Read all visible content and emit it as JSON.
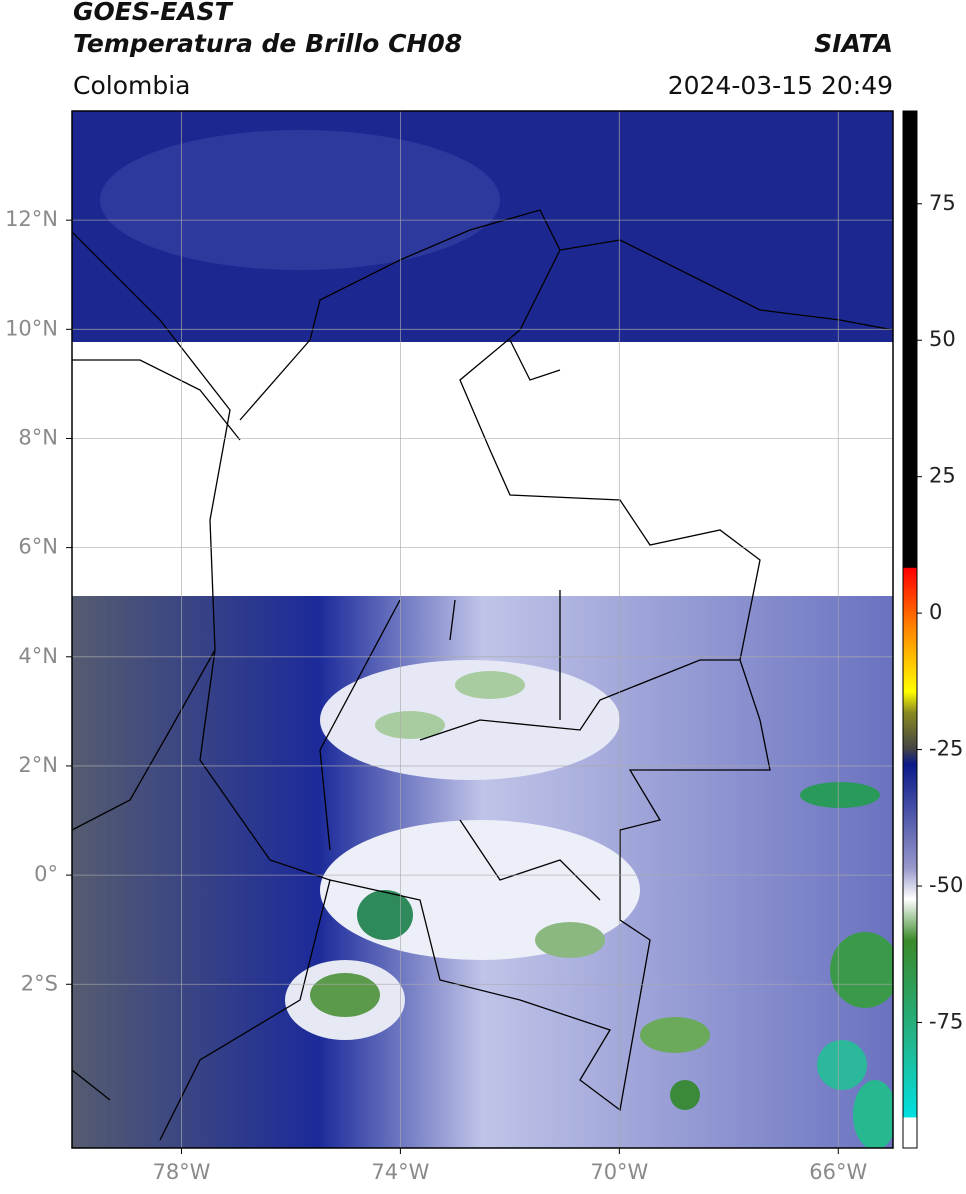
{
  "header": {
    "title": "GOES-EAST",
    "subtitle": "Temperatura de Brillo CH08",
    "region": "Colombia",
    "agency": "SIATA",
    "datetime": "2024-03-15 20:49"
  },
  "map": {
    "lon_range": [
      -80,
      -65
    ],
    "lat_range": [
      -5,
      14
    ],
    "lon_ticks": [
      {
        "value": -78,
        "label": "78°W"
      },
      {
        "value": -74,
        "label": "74°W"
      },
      {
        "value": -70,
        "label": "70°W"
      },
      {
        "value": -66,
        "label": "66°W"
      }
    ],
    "lat_ticks": [
      {
        "value": 12,
        "label": "12°N"
      },
      {
        "value": 10,
        "label": "10°N"
      },
      {
        "value": 8,
        "label": "8°N"
      },
      {
        "value": 6,
        "label": "6°N"
      },
      {
        "value": 4,
        "label": "4°N"
      },
      {
        "value": 2,
        "label": "2°N"
      },
      {
        "value": 0,
        "label": "0°"
      },
      {
        "value": -2,
        "label": "2°S"
      }
    ]
  },
  "colorbar": {
    "range": [
      -98,
      92
    ],
    "ticks": [
      75,
      50,
      25,
      0,
      -25,
      -50,
      -75
    ]
  }
}
